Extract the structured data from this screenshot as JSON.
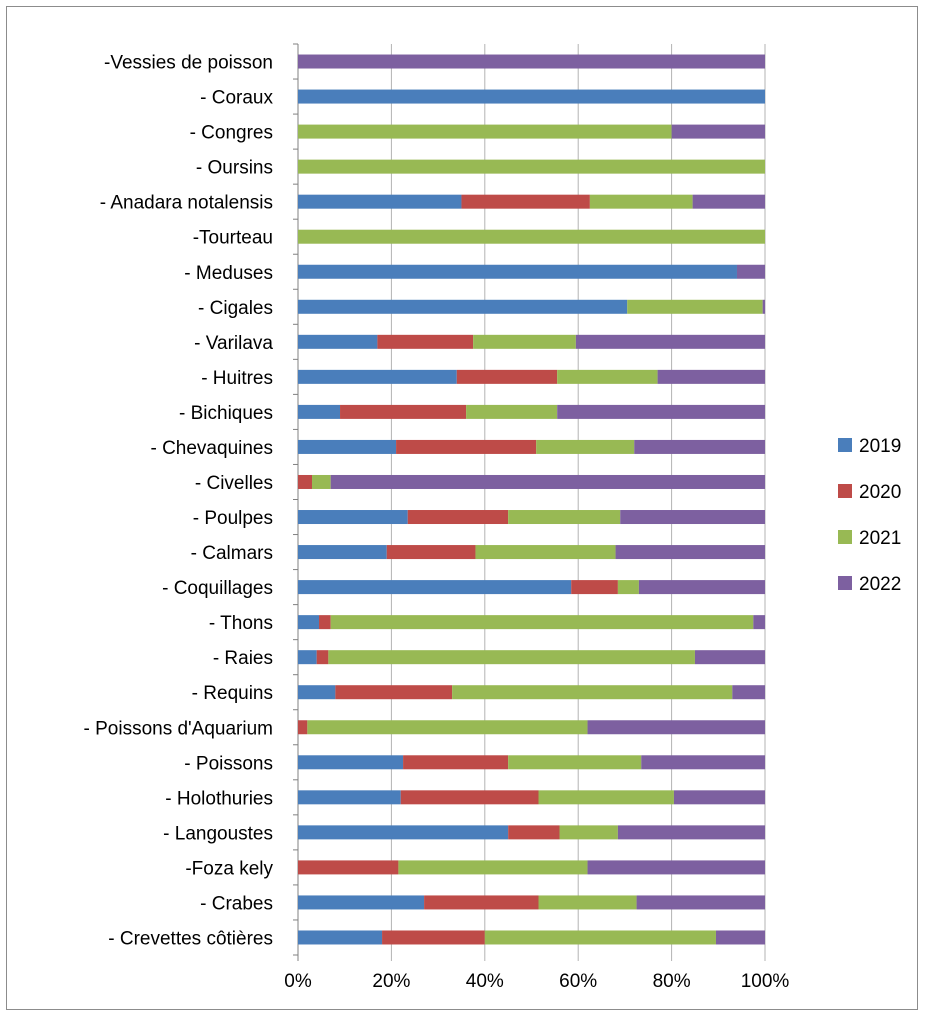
{
  "chart_data": {
    "type": "bar",
    "orientation": "horizontal",
    "stacked": "percent",
    "categories": [
      "-Vessies de poisson",
      "- Coraux",
      "- Congres",
      "- Oursins",
      "- Anadara notalensis",
      "-Tourteau",
      "- Meduses",
      "- Cigales",
      "- Varilava",
      "- Huitres",
      "- Bichiques",
      "- Chevaquines",
      "- Civelles",
      "- Poulpes",
      "- Calmars",
      "- Coquillages",
      "- Thons",
      "- Raies",
      "- Requins",
      "- Poissons d'Aquarium",
      "- Poissons",
      "- Holothuries",
      "- Langoustes",
      "-Foza kely",
      "- Crabes",
      "- Crevettes côtières"
    ],
    "series": [
      {
        "name": "2019",
        "color": "#4a7ebb",
        "values": [
          0,
          100,
          0,
          0,
          35,
          0,
          94,
          70.5,
          17,
          34,
          9,
          21,
          0,
          23.5,
          19,
          58.5,
          4.5,
          4,
          8,
          0,
          22.5,
          22,
          45,
          0,
          27,
          18
        ]
      },
      {
        "name": "2020",
        "color": "#be4b48",
        "values": [
          0,
          0,
          0,
          0,
          27.5,
          0,
          0,
          0,
          20.5,
          21.5,
          27,
          30,
          3,
          21.5,
          19,
          10,
          2.5,
          2.5,
          25,
          2,
          22.5,
          29.5,
          11,
          21.5,
          24.5,
          22
        ]
      },
      {
        "name": "2021",
        "color": "#98b954",
        "values": [
          0,
          0,
          80,
          100,
          22,
          100,
          0,
          29,
          22,
          21.5,
          19.5,
          21,
          4,
          24,
          30,
          4.5,
          90.5,
          78.5,
          60,
          60,
          28.5,
          29,
          12.5,
          40.5,
          21,
          49.5
        ]
      },
      {
        "name": "2022",
        "color": "#7d60a0",
        "values": [
          100,
          0,
          20,
          0,
          15.5,
          0,
          6,
          0.5,
          40.5,
          23,
          44.5,
          28,
          93,
          31,
          32,
          27,
          2.5,
          15,
          7,
          38,
          26.5,
          19.5,
          31.5,
          38,
          27.5,
          10.5
        ]
      }
    ],
    "x_ticks": [
      "0%",
      "20%",
      "40%",
      "60%",
      "80%",
      "100%"
    ],
    "xlim": [
      0,
      100
    ],
    "grid": true,
    "legend": "right"
  }
}
